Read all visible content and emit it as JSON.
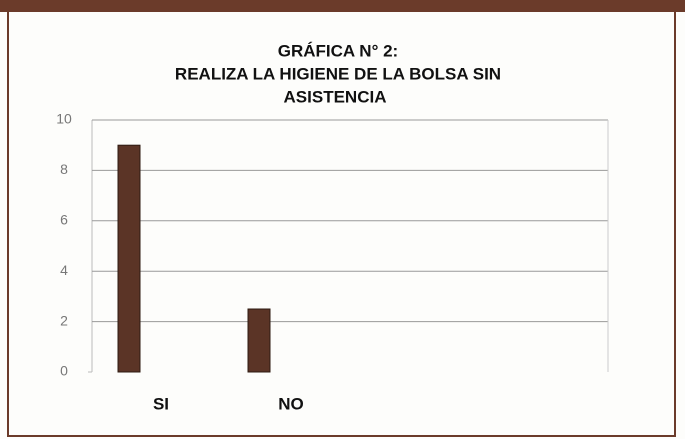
{
  "chart_data": {
    "type": "bar",
    "title": [
      "GRÁFICA N° 2:",
      "REALIZA LA HIGIENE DE LA BOLSA SIN",
      "ASISTENCIA"
    ],
    "categories": [
      "SI",
      "NO"
    ],
    "values": [
      9,
      2.5
    ],
    "color": "#5b3426",
    "ylim": [
      0,
      10
    ],
    "yticks": [
      0,
      2,
      4,
      6,
      8,
      10
    ],
    "grid": true
  }
}
